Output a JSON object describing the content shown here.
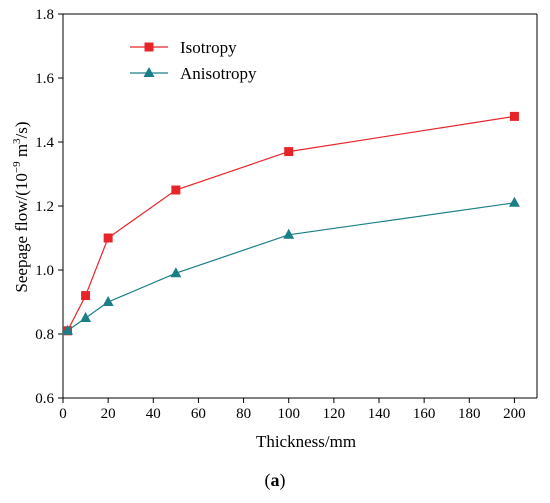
{
  "chart_data": {
    "type": "line",
    "title": "",
    "xlabel": "Thickness/mm",
    "ylabel": {
      "prefix": "Seepage flow/(10",
      "exp1": "−9",
      "mid": " m",
      "exp2": "3",
      "suffix": "/s)"
    },
    "xlim": [
      0,
      210
    ],
    "ylim": [
      0.6,
      1.8
    ],
    "xticks": [
      0,
      20,
      40,
      60,
      80,
      100,
      120,
      140,
      160,
      180,
      200
    ],
    "yticks": [
      0.6,
      0.8,
      1.0,
      1.2,
      1.4,
      1.6,
      1.8
    ],
    "ytick_labels": [
      "0.6",
      "0.8",
      "1.0",
      "1.2",
      "1.4",
      "1.6",
      "1.8"
    ],
    "grid": false,
    "legend_position": "top-left",
    "series": [
      {
        "name": "Isotropy",
        "color": "#e8242b",
        "marker": "square",
        "x": [
          2,
          10,
          20,
          50,
          100,
          200
        ],
        "y": [
          0.81,
          0.92,
          1.1,
          1.25,
          1.37,
          1.48
        ]
      },
      {
        "name": "Anisotropy",
        "color": "#1a7f86",
        "marker": "triangle",
        "x": [
          2,
          10,
          20,
          50,
          100,
          200
        ],
        "y": [
          0.81,
          0.85,
          0.9,
          0.99,
          1.11,
          1.21
        ]
      }
    ]
  },
  "caption": {
    "open": "(",
    "letter": "a",
    "close": ")"
  }
}
